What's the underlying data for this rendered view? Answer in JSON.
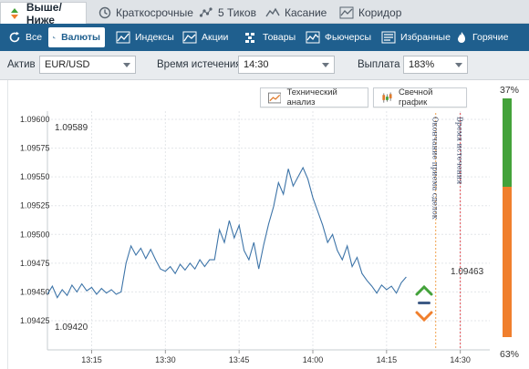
{
  "tabs": [
    {
      "label": "Выше/Ниже",
      "icon": "up-down-arrows-icon"
    },
    {
      "label": "Краткосрочные",
      "icon": "clock-icon"
    },
    {
      "label": "5 Тиков",
      "icon": "ticks-icon"
    },
    {
      "label": "Касание",
      "icon": "touch-icon"
    },
    {
      "label": "Коридор",
      "icon": "range-icon"
    }
  ],
  "categories": [
    {
      "label": "Все",
      "icon": "refresh-icon"
    },
    {
      "label": "Валюты",
      "icon": "currency-icon"
    },
    {
      "label": "Индексы",
      "icon": "index-chart-icon"
    },
    {
      "label": "Акции",
      "icon": "stocks-chart-icon"
    },
    {
      "label": "Товары",
      "icon": "commodities-icon"
    },
    {
      "label": "Фьючерсы",
      "icon": "futures-icon"
    },
    {
      "label": "Избранные",
      "icon": "favorites-icon"
    },
    {
      "label": "Горячие",
      "icon": "flame-icon"
    }
  ],
  "params": {
    "asset_label": "Актив",
    "asset_value": "EUR/USD",
    "expiry_label": "Время истечения",
    "expiry_value": "14:30",
    "payout_label": "Выплата",
    "payout_value": "183%"
  },
  "chart_buttons": {
    "technical": "Технический анализ",
    "candles": "Свечной график"
  },
  "probability": {
    "up_label": "37%",
    "down_label": "63%",
    "up_fraction": 0.37,
    "up_color": "#43a23a",
    "down_color": "#f07f2d"
  },
  "trade_arrows": {
    "up_color": "#43a23a",
    "down_color": "#f07f2d",
    "bar_color": "#3e5b86"
  },
  "chart_data": {
    "type": "line",
    "y_ticks": [
      "1.09600",
      "1.09575",
      "1.09550",
      "1.09525",
      "1.09500",
      "1.09475",
      "1.09450",
      "1.09425"
    ],
    "y_tick_values": [
      1.096,
      1.09575,
      1.0955,
      1.09525,
      1.095,
      1.09475,
      1.0945,
      1.09425
    ],
    "x_ticks": [
      "13:15",
      "13:30",
      "13:45",
      "14:00",
      "14:15",
      "14:30"
    ],
    "x_tick_minutes": [
      795,
      810,
      825,
      840,
      855,
      870
    ],
    "max_label": "1.09589",
    "min_label": "1.09420",
    "current_label": "1.09463",
    "vertical_lines": [
      {
        "label": "Окончание приема сделок",
        "minute": 865,
        "color": "#f0a04b"
      },
      {
        "label": "Время истечения",
        "minute": 870,
        "color": "#e0474c"
      }
    ],
    "ylim": [
      1.0941,
      1.0961
    ],
    "grid": true,
    "line_color": "#3d74a8",
    "series": [
      {
        "x": [
          786,
          787,
          788,
          789,
          790,
          791,
          792,
          793,
          794,
          795,
          796,
          797,
          798,
          799,
          800,
          801,
          802,
          803,
          804,
          805,
          806,
          807,
          808,
          809,
          810,
          811,
          812,
          813,
          814,
          815,
          816,
          817,
          818,
          819,
          820,
          821,
          822,
          823,
          824,
          825,
          826,
          827,
          828,
          829,
          830,
          831,
          832,
          833,
          834,
          835,
          836,
          837,
          838,
          839,
          840,
          841,
          842,
          843,
          844,
          845,
          846,
          847,
          848,
          849,
          850,
          851,
          852,
          853,
          854,
          855,
          856,
          857,
          858,
          859
        ],
        "y": [
          1.09448,
          1.09455,
          1.09445,
          1.09452,
          1.09447,
          1.09456,
          1.0945,
          1.09457,
          1.09451,
          1.09454,
          1.09448,
          1.09453,
          1.09449,
          1.09452,
          1.09448,
          1.0945,
          1.09475,
          1.0949,
          1.09482,
          1.09488,
          1.09479,
          1.09487,
          1.09478,
          1.0947,
          1.09468,
          1.09472,
          1.09466,
          1.09474,
          1.09469,
          1.09475,
          1.0947,
          1.09478,
          1.09472,
          1.09478,
          1.09478,
          1.09504,
          1.09493,
          1.09512,
          1.09497,
          1.09508,
          1.09486,
          1.09478,
          1.09493,
          1.0947,
          1.09491,
          1.09509,
          1.09524,
          1.09545,
          1.09535,
          1.09557,
          1.09542,
          1.0955,
          1.09558,
          1.09548,
          1.09532,
          1.0952,
          1.09508,
          1.09493,
          1.095,
          1.09486,
          1.09478,
          1.0949,
          1.09472,
          1.0948,
          1.09466,
          1.0946,
          1.09455,
          1.09449,
          1.09456,
          1.09452,
          1.09455,
          1.09449,
          1.09458,
          1.09463
        ]
      }
    ]
  }
}
